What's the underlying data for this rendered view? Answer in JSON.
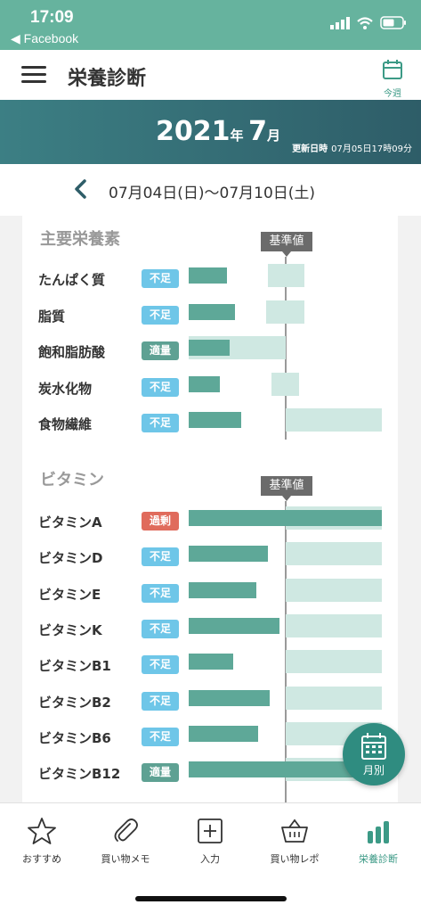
{
  "status_bar": {
    "time": "17:09",
    "back_label": "◀ Facebook"
  },
  "header": {
    "title": "栄養診断",
    "week_button_label": "今週"
  },
  "banner": {
    "year": "2021",
    "year_suffix": "年",
    "month": "7",
    "month_suffix": "月",
    "updated_label": "更新日時",
    "updated_value": "07月05日17時09分"
  },
  "week_nav": {
    "range": "07月04日(日)〜07月10日(土)"
  },
  "sections": [
    {
      "title": "主要栄養素",
      "std_label": "基準値",
      "rows": [
        {
          "label": "たんぱく質",
          "status": "不足",
          "status_type": "short",
          "value_pct": 20,
          "range_pct": [
            41,
            60
          ]
        },
        {
          "label": "脂質",
          "status": "不足",
          "status_type": "short",
          "value_pct": 24,
          "range_pct": [
            40,
            60
          ]
        },
        {
          "label": "飽和脂肪酸",
          "status": "適量",
          "status_type": "ok",
          "value_pct": 21,
          "range_pct": [
            0,
            50
          ]
        },
        {
          "label": "炭水化物",
          "status": "不足",
          "status_type": "short",
          "value_pct": 16,
          "range_pct": [
            43,
            57
          ]
        },
        {
          "label": "食物繊維",
          "status": "不足",
          "status_type": "short",
          "value_pct": 27,
          "range_pct": [
            50,
            100
          ]
        }
      ]
    },
    {
      "title": "ビタミン",
      "std_label": "基準値",
      "rows": [
        {
          "label": "ビタミンA",
          "status": "過剰",
          "status_type": "over",
          "value_pct": 100,
          "range_pct": [
            50,
            100
          ]
        },
        {
          "label": "ビタミンD",
          "status": "不足",
          "status_type": "short",
          "value_pct": 41,
          "range_pct": [
            50,
            100
          ]
        },
        {
          "label": "ビタミンE",
          "status": "不足",
          "status_type": "short",
          "value_pct": 35,
          "range_pct": [
            50,
            100
          ]
        },
        {
          "label": "ビタミンK",
          "status": "不足",
          "status_type": "short",
          "value_pct": 47,
          "range_pct": [
            50,
            100
          ]
        },
        {
          "label": "ビタミンB1",
          "status": "不足",
          "status_type": "short",
          "value_pct": 23,
          "range_pct": [
            50,
            100
          ]
        },
        {
          "label": "ビタミンB2",
          "status": "不足",
          "status_type": "short",
          "value_pct": 42,
          "range_pct": [
            50,
            100
          ]
        },
        {
          "label": "ビタミンB6",
          "status": "不足",
          "status_type": "short",
          "value_pct": 36,
          "range_pct": [
            50,
            100
          ]
        },
        {
          "label": "ビタミンB12",
          "status": "適量",
          "status_type": "ok",
          "value_pct": 88,
          "range_pct": [
            50,
            100
          ]
        }
      ]
    }
  ],
  "fab": {
    "label": "月別"
  },
  "tabs": [
    {
      "label": "おすすめ",
      "icon": "star-icon"
    },
    {
      "label": "買い物メモ",
      "icon": "paperclip-icon"
    },
    {
      "label": "入力",
      "icon": "plus-box-icon"
    },
    {
      "label": "買い物レポ",
      "icon": "basket-icon"
    },
    {
      "label": "栄養診断",
      "icon": "bar-chart-icon",
      "active": true
    }
  ],
  "colors": {
    "accent": "#3c9a86",
    "status_bar": "#66b39e",
    "banner": "#2e5d68",
    "bar": "#5ea898",
    "range": "#cfe8e2",
    "badge_short": "#6ec6e8",
    "badge_ok": "#5ea193",
    "badge_over": "#e06b5c"
  }
}
